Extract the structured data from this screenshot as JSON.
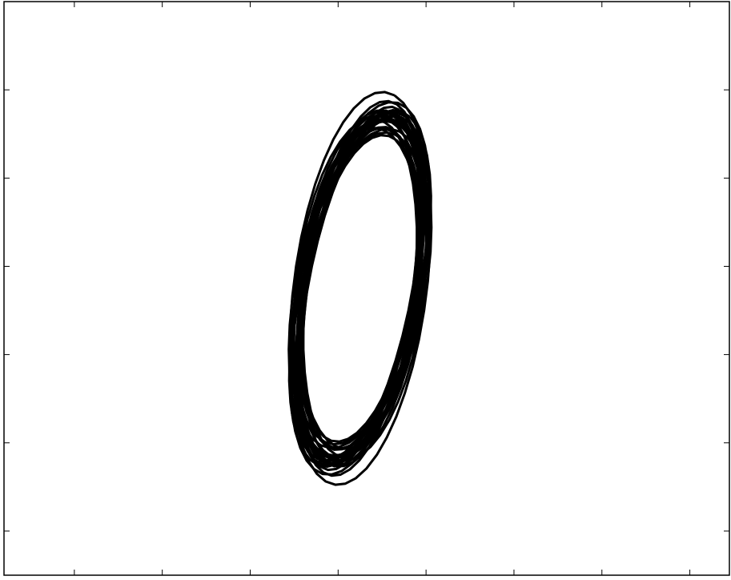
{
  "chart_data": {
    "type": "line",
    "title": "",
    "xlabel": "",
    "ylabel": "",
    "xlim": [
      0,
      8.25
    ],
    "ylim": [
      0,
      6.5
    ],
    "xticks": [
      0.8,
      1.8,
      2.8,
      3.8,
      4.8,
      5.8,
      6.8,
      7.8
    ],
    "yticks": [
      0.5,
      1.5,
      2.5,
      3.5,
      4.5,
      5.5
    ],
    "tick_labels_shown": false,
    "grid": false,
    "legend": "none",
    "colors": {
      "line": "#000000",
      "axes": "#000000",
      "background": "#ffffff"
    },
    "series": [
      {
        "center": [
          4.05,
          3.25
        ],
        "loops": [
          {
            "a": 1.9,
            "b": 1.16,
            "rot": 68
          },
          {
            "a": 2.04,
            "b": 1.1,
            "rot": 66
          },
          {
            "a": 2.16,
            "b": 1.08,
            "rot": 64
          },
          {
            "a": 2.1,
            "b": 1.26,
            "rot": 70
          },
          {
            "a": 2.03,
            "b": 1.06,
            "rot": 72
          },
          {
            "a": 2.2,
            "b": 1.18,
            "rot": 62
          },
          {
            "a": 1.86,
            "b": 1.22,
            "rot": 74
          },
          {
            "a": 2.12,
            "b": 1.02,
            "rot": 67
          },
          {
            "a": 1.97,
            "b": 1.2,
            "rot": 60
          },
          {
            "a": 2.08,
            "b": 1.14,
            "rot": 71
          },
          {
            "a": 2.26,
            "b": 1.22,
            "rot": 65
          },
          {
            "a": 1.92,
            "b": 1.04,
            "rot": 69
          },
          {
            "a": 2.0,
            "b": 1.3,
            "rot": 73
          },
          {
            "a": 2.14,
            "b": 1.12,
            "rot": 61
          },
          {
            "a": 1.84,
            "b": 1.08,
            "rot": 66
          },
          {
            "a": 2.22,
            "b": 1.16,
            "rot": 70
          },
          {
            "a": 2.06,
            "b": 1.28,
            "rot": 63
          },
          {
            "a": 1.95,
            "b": 1.1,
            "rot": 75
          },
          {
            "a": 2.18,
            "b": 1.04,
            "rot": 68
          },
          {
            "a": 2.02,
            "b": 1.24,
            "rot": 64
          },
          {
            "a": 2.3,
            "b": 1.34,
            "rot": 72
          },
          {
            "a": 1.9,
            "b": 1.18,
            "rot": 62
          },
          {
            "a": 2.1,
            "b": 1.06,
            "rot": 69
          },
          {
            "a": 2.08,
            "b": 1.2,
            "rot": 66
          }
        ]
      }
    ]
  }
}
